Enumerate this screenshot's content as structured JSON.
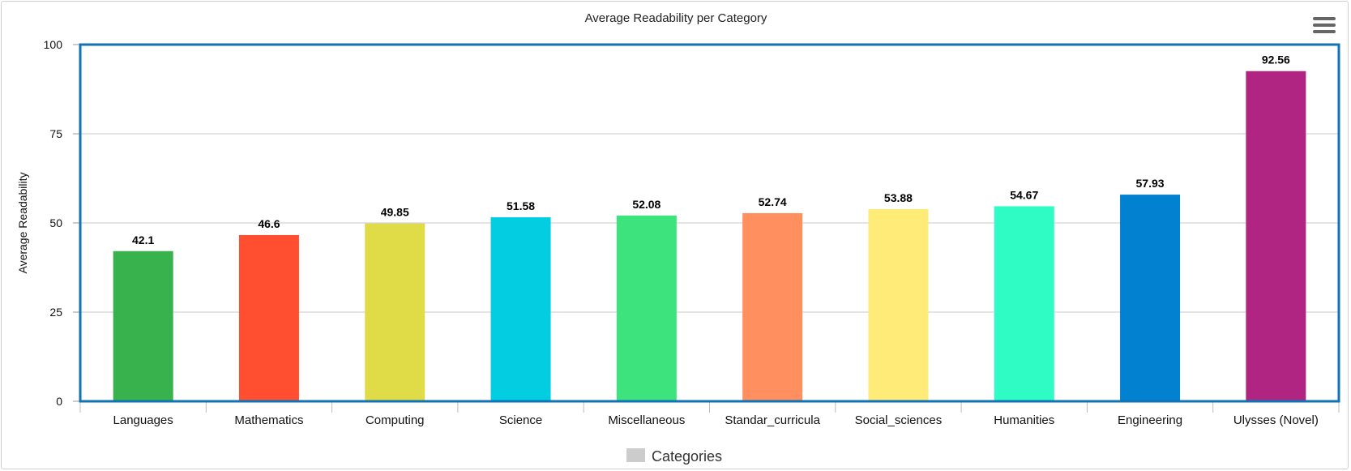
{
  "chart_data": {
    "type": "bar",
    "title": "Average Readability per Category",
    "xlabel": "",
    "ylabel": "Average Readability",
    "ylim": [
      0,
      100
    ],
    "yticks": [
      "0",
      "25",
      "50",
      "75",
      "100"
    ],
    "categories": [
      "Languages",
      "Mathematics",
      "Computing",
      "Science",
      "Miscellaneous",
      "Standar_curricula",
      "Social_sciences",
      "Humanities",
      "Engineering",
      "Ulysses (Novel)"
    ],
    "series": [
      {
        "name": "Categories",
        "values": [
          42.1,
          46.6,
          49.85,
          51.58,
          52.08,
          52.74,
          53.88,
          54.67,
          57.93,
          92.56
        ],
        "labels": [
          "42.1",
          "46.6",
          "49.85",
          "51.58",
          "52.08",
          "52.74",
          "53.88",
          "54.67",
          "57.93",
          "92.56"
        ],
        "colors": [
          "#37b24d",
          "#ff4f30",
          "#e0dc47",
          "#03cde0",
          "#3de47e",
          "#ff8f5f",
          "#ffeb77",
          "#2ffbc4",
          "#0281d0",
          "#b02482"
        ]
      }
    ],
    "grid": true,
    "legend": {
      "position": "bottom-center",
      "color": "#cccccc"
    },
    "plot_border_color": "#0f74b5"
  }
}
